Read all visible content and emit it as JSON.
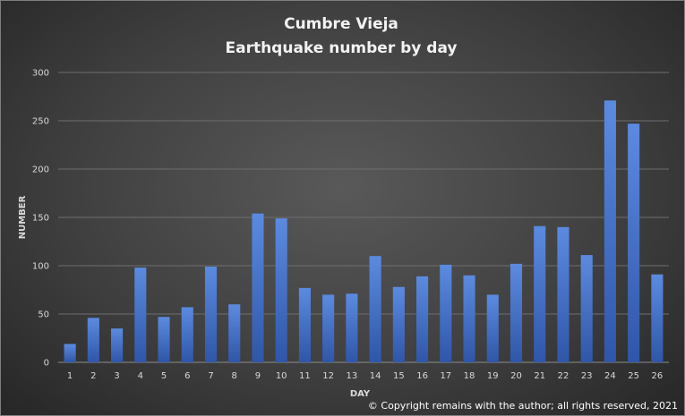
{
  "chart_data": {
    "type": "bar",
    "title": [
      "Cumbre Vieja",
      "Earthquake number by day"
    ],
    "xlabel": "DAY",
    "ylabel": "NUMBER",
    "categories": [
      "1",
      "2",
      "3",
      "4",
      "5",
      "6",
      "7",
      "8",
      "9",
      "10",
      "11",
      "12",
      "13",
      "14",
      "15",
      "16",
      "17",
      "18",
      "19",
      "20",
      "21",
      "22",
      "23",
      "24",
      "25",
      "26"
    ],
    "values": [
      19,
      46,
      35,
      98,
      47,
      57,
      99,
      60,
      154,
      149,
      77,
      70,
      71,
      110,
      78,
      89,
      101,
      90,
      70,
      102,
      141,
      140,
      111,
      271,
      247,
      91
    ],
    "ylim": [
      0,
      300
    ],
    "yticks": [
      0,
      50,
      100,
      150,
      200,
      250,
      300
    ],
    "grid": true,
    "legend": "none",
    "bar_color": "#4472c4"
  },
  "copyright": "© Copyright remains with the author; all rights reserved, 2021"
}
